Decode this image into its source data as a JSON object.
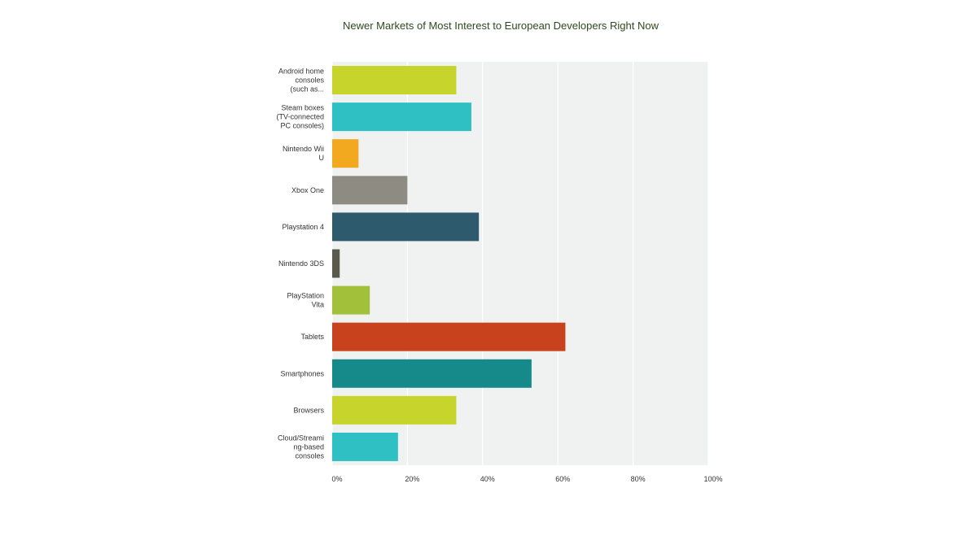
{
  "chart_data": {
    "type": "bar",
    "orientation": "horizontal",
    "title": "Newer Markets of Most Interest to European Developers Right Now",
    "categories": [
      [
        "Android home",
        "consoles",
        "(such as..."
      ],
      [
        "Steam boxes",
        "(TV-connected",
        "PC consoles)"
      ],
      [
        "Nintendo Wii",
        "U"
      ],
      [
        "Xbox One"
      ],
      [
        "Playstation 4"
      ],
      [
        "Nintendo 3DS"
      ],
      [
        "PlayStation",
        "Vita"
      ],
      [
        "Tablets"
      ],
      [
        "Smartphones"
      ],
      [
        "Browsers"
      ],
      [
        "Cloud/Streami",
        "ng-based",
        "consoles"
      ]
    ],
    "values": [
      33,
      37,
      7,
      20,
      39,
      2,
      10,
      62,
      53,
      33,
      17.5
    ],
    "colors": [
      "#c6d42c",
      "#2fc0c4",
      "#f2a81f",
      "#8e8c82",
      "#2e5a6e",
      "#5a5a4c",
      "#a3c03b",
      "#c8421e",
      "#16898a",
      "#c6d42c",
      "#2fc0c4"
    ],
    "xlim": [
      0,
      100
    ],
    "ticks": [
      "0%",
      "20%",
      "40%",
      "60%",
      "80%",
      "100%"
    ],
    "tick_values": [
      0,
      20,
      40,
      60,
      80,
      100
    ],
    "xlabel": "",
    "ylabel": "",
    "grid": true,
    "plot_background": "#f0f1f1",
    "gridline_color": "#ffffff"
  }
}
